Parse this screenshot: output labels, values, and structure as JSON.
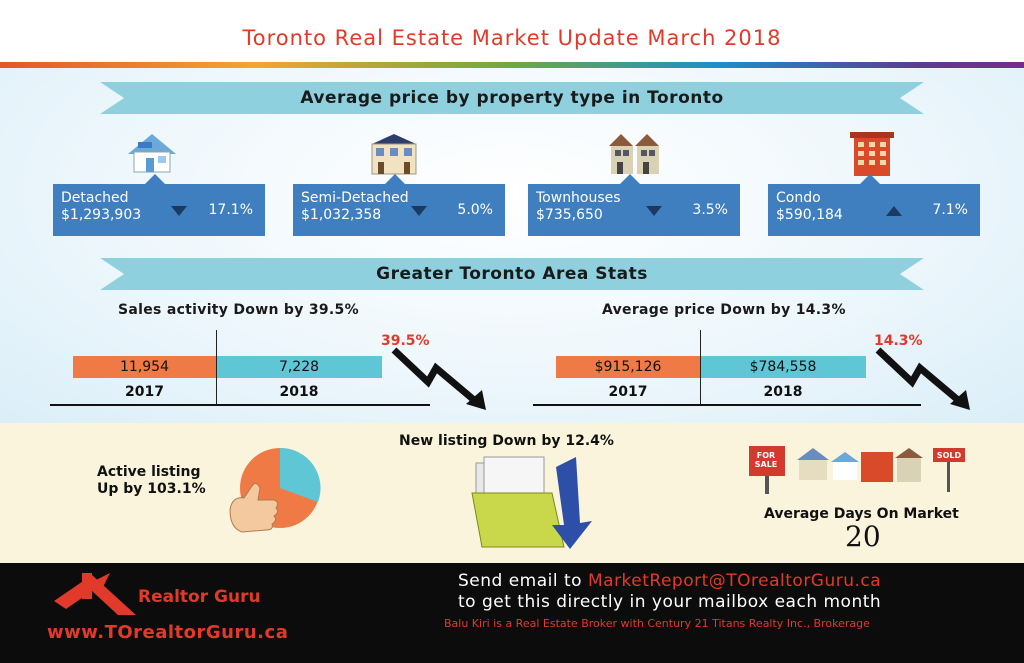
{
  "title": "Toronto Real Estate Market Update March 2018",
  "ribbons": {
    "property_types": "Average price by property type in Toronto",
    "gta": "Greater Toronto Area Stats"
  },
  "property_types": [
    {
      "name": "Detached",
      "price": "$1,293,903",
      "direction": "down",
      "change": "17.1%"
    },
    {
      "name": "Semi-Detached",
      "price": "$1,032,358",
      "direction": "down",
      "change": "5.0%"
    },
    {
      "name": "Townhouses",
      "price": "$735,650",
      "direction": "down",
      "change": "3.5%"
    },
    {
      "name": "Condo",
      "price": "$590,184",
      "direction": "up",
      "change": "7.1%"
    }
  ],
  "chart_data": [
    {
      "type": "bar",
      "title": "Sales activity Down by 39.5%",
      "categories": [
        "2017",
        "2018"
      ],
      "values": [
        11954,
        7228
      ],
      "value_labels": [
        "11,954",
        "7,228"
      ],
      "annotation": "39.5%"
    },
    {
      "type": "bar",
      "title": "Average price  Down by 14.3%",
      "categories": [
        "2017",
        "2018"
      ],
      "values": [
        915126,
        784558
      ],
      "value_labels": [
        "$915,126",
        "$784,558"
      ],
      "annotation": "14.3%"
    }
  ],
  "lower": {
    "active_listing_line1": "Active listing",
    "active_listing_line2": "Up by 103.1%",
    "new_listing": "New listing Down by 12.4%",
    "days_label": "Average Days On Market",
    "days_value": "20",
    "for_sale_sign": "FOR SALE",
    "sold_sign": "SOLD"
  },
  "footer": {
    "brand": "Realtor Guru",
    "url": "www.TOrealtorGuru.ca",
    "line1_prefix": "Send email to ",
    "email": "MarketReport@TOrealtorGuru.ca",
    "line2": "to get this directly in your mailbox each month",
    "disclaimer": "Balu Kiri is a Real Estate Broker with Century 21 Titans Realty Inc., Brokerage"
  },
  "colors": {
    "accent_red": "#e23a2a",
    "box_blue": "#3f7fc0",
    "ribbon": "#8fd0df",
    "bar_2017": "#ef7a45",
    "bar_2018": "#5fc6d6"
  }
}
